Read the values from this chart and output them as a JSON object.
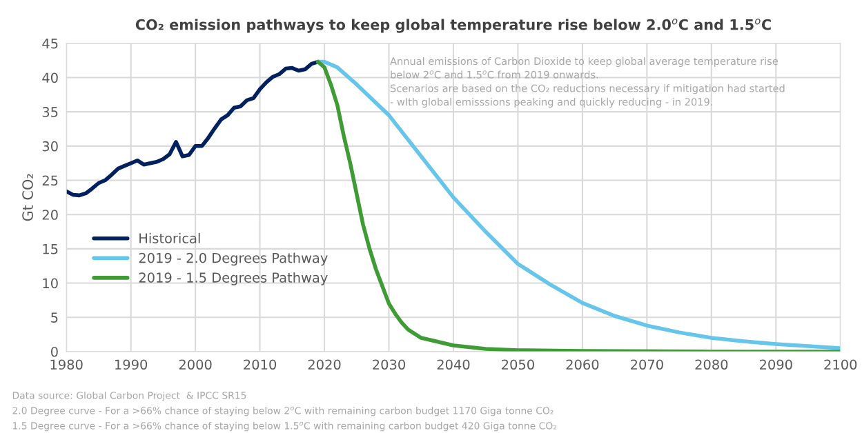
{
  "chart_data": {
    "type": "line",
    "title": "CO₂ emission pathways to keep global temperature rise below 2.0$^{o}$C and 1.5$^{o}$C",
    "ylabel": "Gt CO₂",
    "xlim": [
      1980,
      2100
    ],
    "xticks": [
      1980,
      1990,
      2000,
      2010,
      2020,
      2030,
      2040,
      2050,
      2060,
      2070,
      2080,
      2090,
      2100
    ],
    "ylim": [
      0,
      45
    ],
    "yticks": [
      0,
      5,
      10,
      15,
      20,
      25,
      30,
      35,
      40,
      45
    ],
    "grid": true,
    "legend": "left",
    "marker": "none",
    "line_style": "solid",
    "series": [
      {
        "name": "Historical",
        "color": "#002060",
        "x": [
          1980,
          1981,
          1982,
          1983,
          1984,
          1985,
          1986,
          1987,
          1988,
          1989,
          1990,
          1991,
          1992,
          1993,
          1994,
          1995,
          1996,
          1997,
          1998,
          1999,
          2000,
          2001,
          2002,
          2003,
          2004,
          2005,
          2006,
          2007,
          2008,
          2009,
          2010,
          2011,
          2012,
          2013,
          2014,
          2015,
          2016,
          2017,
          2018,
          2019
        ],
        "values": [
          23.4,
          22.9,
          22.8,
          23.1,
          23.8,
          24.6,
          25.0,
          25.8,
          26.7,
          27.1,
          27.5,
          27.9,
          27.3,
          27.5,
          27.7,
          28.1,
          28.8,
          30.6,
          28.5,
          28.7,
          30.0,
          30.0,
          31.2,
          32.6,
          33.9,
          34.5,
          35.6,
          35.8,
          36.7,
          37.0,
          38.3,
          39.3,
          40.1,
          40.5,
          41.3,
          41.4,
          41.0,
          41.2,
          42.0,
          42.3
        ]
      },
      {
        "name": "2019 - 2.0 Degrees Pathway",
        "color": "#66c5ea",
        "x": [
          2019,
          2020,
          2022,
          2025,
          2030,
          2035,
          2040,
          2045,
          2050,
          2055,
          2060,
          2065,
          2070,
          2075,
          2080,
          2085,
          2090,
          2095,
          2100
        ],
        "values": [
          42.3,
          42.3,
          41.5,
          39.0,
          34.5,
          28.5,
          22.5,
          17.5,
          12.8,
          9.8,
          7.1,
          5.2,
          3.8,
          2.8,
          2.0,
          1.5,
          1.1,
          0.8,
          0.5
        ]
      },
      {
        "name": "2019 - 1.5 Degrees Pathway",
        "color": "#3f9c35",
        "x": [
          2019,
          2020,
          2021,
          2022,
          2023,
          2024,
          2025,
          2026,
          2027,
          2028,
          2029,
          2030,
          2031,
          2032,
          2033,
          2035,
          2040,
          2045,
          2050,
          2060,
          2080,
          2100
        ],
        "values": [
          42.3,
          41.5,
          39.0,
          36.0,
          31.5,
          27.5,
          23.0,
          18.5,
          15.0,
          12.0,
          9.5,
          7.0,
          5.5,
          4.2,
          3.2,
          2.0,
          0.9,
          0.4,
          0.2,
          0.1,
          0.0,
          0.0
        ]
      }
    ],
    "annotations": [
      "Annual emissions of Carbon Dioxide to keep global average temperature rise\nbelow 2$^{o}$C and 1.5$^{o}$C from 2019 onwards.\nScenarios are based on the CO₂ reductions necessary if mitigation had started\n- wIth global emisssions peaking and quickly reducing - in 2019.",
      "Data source: Global Carbon Project  & IPCC SR15",
      "2.0 Degree curve - For a >66% chance of staying below 2$^{o}$C with remaining carbon budget 1170 Giga tonne CO₂",
      "1.5 Degree curve - For a >66% chance of staying below 1.5$^{o}$C with remaining carbon budget 420 Giga tonne CO₂"
    ]
  }
}
